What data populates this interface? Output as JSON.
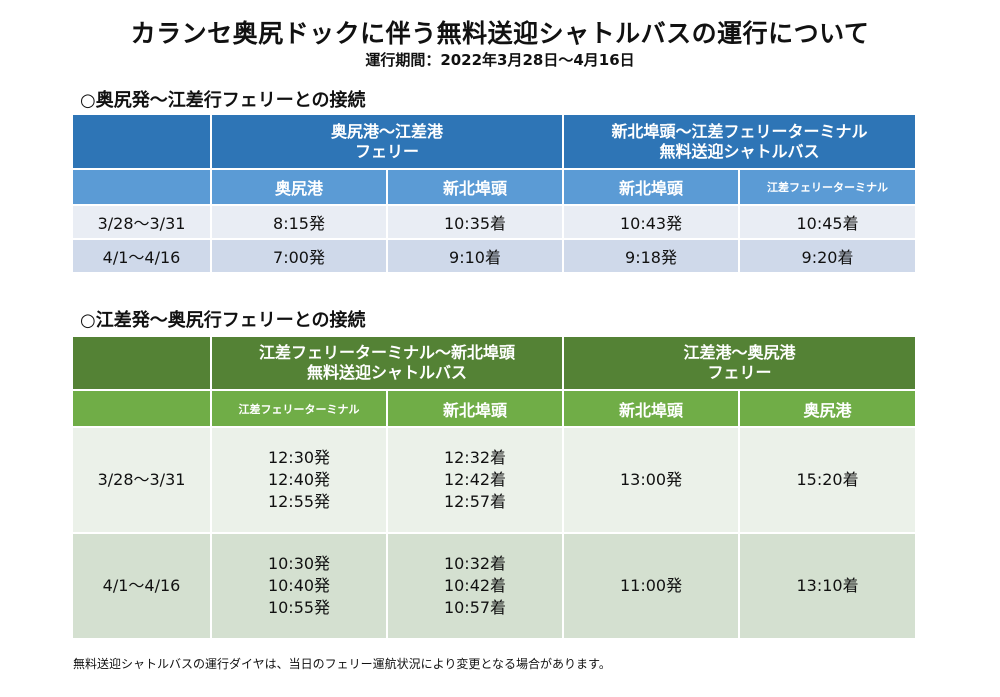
{
  "title": "カランセ奥尻ドックに伴う無料送迎シャトルバスの運行について",
  "period": "運行期間：2022年3月28日～4月16日",
  "section1": {
    "heading": "○奥尻発～江差行フェリーとの接続",
    "group_left": [
      "奥尻港～江差港",
      "フェリー"
    ],
    "group_right": [
      "新北埠頭～江差フェリーターミナル",
      "無料送迎シャトルバス"
    ],
    "columns": [
      "奥尻港",
      "新北埠頭",
      "新北埠頭",
      "江差フェリーターミナル"
    ],
    "rows": [
      {
        "period": "3/28～3/31",
        "cells": [
          "8:15発",
          "10:35着",
          "10:43発",
          "10:45着"
        ]
      },
      {
        "period": "4/1～4/16",
        "cells": [
          "7:00発",
          "9:10着",
          "9:18発",
          "9:20着"
        ]
      }
    ]
  },
  "section2": {
    "heading": "○江差発～奥尻行フェリーとの接続",
    "group_left": [
      "江差フェリーターミナル～新北埠頭",
      "無料送迎シャトルバス"
    ],
    "group_right": [
      "江差港～奥尻港",
      "フェリー"
    ],
    "columns": [
      "江差フェリーターミナル",
      "新北埠頭",
      "新北埠頭",
      "奥尻港"
    ],
    "rows": [
      {
        "period": "3/28～3/31",
        "c1": [
          "12:30発",
          "12:40発",
          "12:55発"
        ],
        "c2": [
          "12:32着",
          "12:42着",
          "12:57着"
        ],
        "c3": "13:00発",
        "c4": "15:20着"
      },
      {
        "period": "4/1～4/16",
        "c1": [
          "10:30発",
          "10:40発",
          "10:55発"
        ],
        "c2": [
          "10:32着",
          "10:42着",
          "10:57着"
        ],
        "c3": "11:00発",
        "c4": "13:10着"
      }
    ]
  },
  "note": "無料送迎シャトルバスの運行ダイヤは、当日のフェリー運航状況により変更となる場合があります。",
  "colors": {
    "blue_header": "#2e75b6",
    "blue_subheader": "#5b9bd5",
    "green_header": "#548235",
    "green_subheader": "#70ad47"
  }
}
